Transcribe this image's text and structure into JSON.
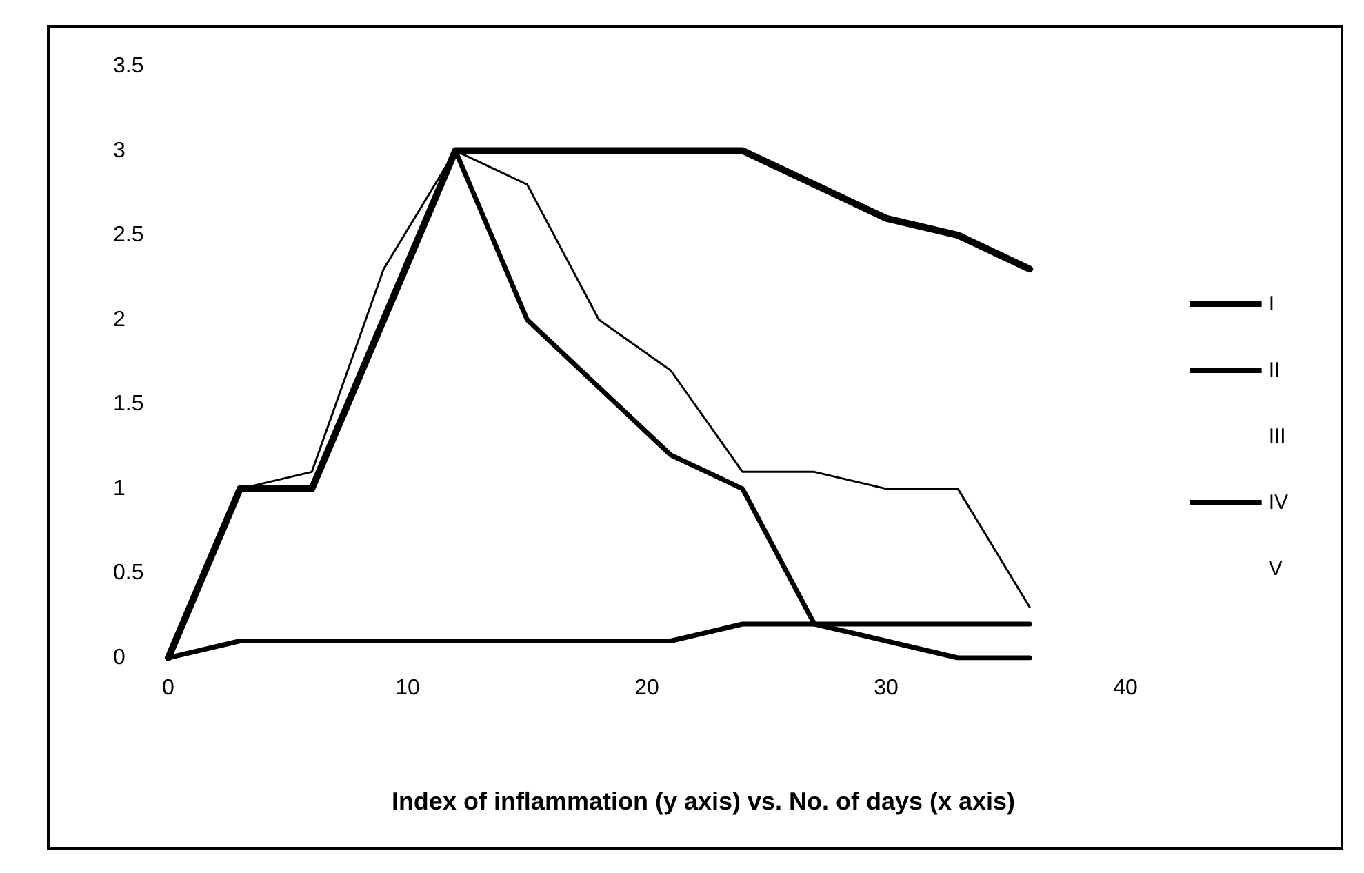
{
  "chart_data": {
    "type": "line",
    "title": "Index of inflammation (y axis) vs. No. of days (x axis)",
    "x": [
      0,
      3,
      6,
      9,
      12,
      15,
      18,
      21,
      24,
      27,
      30,
      33,
      36
    ],
    "series": [
      {
        "name": "I",
        "color": "#000000",
        "values": [
          0,
          1,
          1,
          2,
          3,
          2,
          1.6,
          1.2,
          1,
          0.2,
          0.1,
          0,
          0
        ]
      },
      {
        "name": "II",
        "color": "#000000",
        "values": [
          0,
          1,
          1,
          2,
          3,
          3,
          3,
          3,
          3,
          2.8,
          2.6,
          2.5,
          2.3
        ]
      },
      {
        "name": "III",
        "values": [
          null,
          null,
          null,
          null,
          null,
          null,
          null,
          null,
          null,
          null,
          null,
          null,
          null
        ]
      },
      {
        "name": "IV",
        "color": "#000000",
        "values": [
          0,
          1,
          1.1,
          2.3,
          3,
          2.8,
          2,
          1.7,
          1.1,
          1.1,
          1,
          1,
          0.3
        ]
      },
      {
        "name": "V",
        "values": [
          null,
          null,
          null,
          null,
          null,
          null,
          null,
          null,
          null,
          null,
          null,
          null,
          null
        ]
      },
      {
        "color": "#000000",
        "values": [
          0,
          0.1,
          0.1,
          0.1,
          0.1,
          0.1,
          0.1,
          0.1,
          0.2,
          0.2,
          0.2,
          0.2,
          0.2
        ]
      }
    ],
    "xlim": [
      0,
      40
    ],
    "xticks": [
      0,
      10,
      20,
      30,
      40
    ],
    "ylim": [
      0,
      3.5
    ],
    "yticks": [
      0,
      0.5,
      1,
      1.5,
      2,
      2.5,
      3,
      3.5
    ],
    "grid": false,
    "legend": "right",
    "marker": "none",
    "line_style": "solid"
  }
}
